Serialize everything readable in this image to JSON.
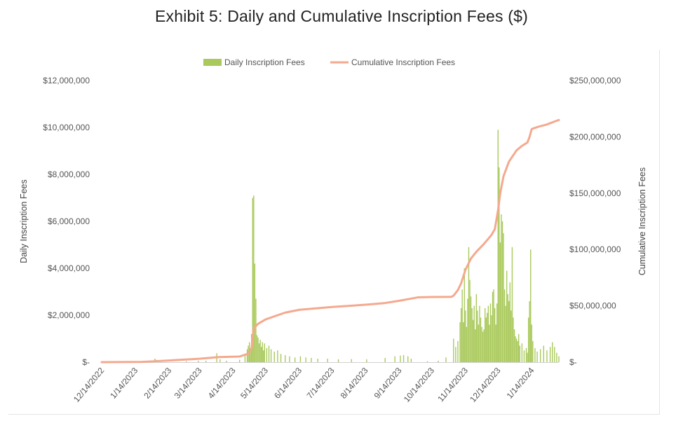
{
  "title": "Exhibit 5: Daily and Cumulative Inscription Fees ($)",
  "chart_data": {
    "type": "bar+line",
    "ylabel_left": "Daily Inscription Fees",
    "ylabel_right": "Cumulative Inscription Fees",
    "legend": {
      "placement": "top-center",
      "bar_label": "Daily Inscription Fees",
      "line_label": "Cumulative Inscription Fees"
    },
    "colors": {
      "bar": "#a9c95b",
      "line": "#f4a98e",
      "axis": "#d0d0d0"
    },
    "y_left": {
      "range": [
        0,
        12000000
      ],
      "ticks": [
        0,
        2000000,
        4000000,
        6000000,
        8000000,
        10000000,
        12000000
      ],
      "tick_labels": [
        "$-",
        "$2,000,000",
        "$4,000,000",
        "$6,000,000",
        "$8,000,000",
        "$10,000,000",
        "$12,000,000"
      ]
    },
    "y_right": {
      "range": [
        0,
        250000000
      ],
      "ticks": [
        0,
        50000000,
        100000000,
        150000000,
        200000000,
        250000000
      ],
      "tick_labels": [
        "$-",
        "$50,000,000",
        "$100,000,000",
        "$150,000,000",
        "$200,000,000",
        "$250,000,000"
      ]
    },
    "x_axis": {
      "start": "2022-12-14",
      "end": "2024-02-08",
      "tick_labels": [
        "12/14/2022",
        "1/14/2023",
        "2/14/2023",
        "3/14/2023",
        "4/14/2023",
        "5/14/2023",
        "6/14/2023",
        "7/14/2023",
        "8/14/2023",
        "9/14/2023",
        "10/14/2023",
        "11/14/2023",
        "12/14/2023",
        "1/14/2024"
      ],
      "tick_dates": [
        "2022-12-14",
        "2023-01-14",
        "2023-02-14",
        "2023-03-14",
        "2023-04-14",
        "2023-05-14",
        "2023-06-14",
        "2023-07-14",
        "2023-08-14",
        "2023-09-14",
        "2023-10-14",
        "2023-11-14",
        "2023-12-14",
        "2024-01-14"
      ]
    },
    "daily_series": {
      "name": "Daily Inscription Fees",
      "points": [
        [
          "2023-02-01",
          150000
        ],
        [
          "2023-02-02",
          100000
        ],
        [
          "2023-03-02",
          40000
        ],
        [
          "2023-03-13",
          60000
        ],
        [
          "2023-03-20",
          60000
        ],
        [
          "2023-03-30",
          380000
        ],
        [
          "2023-04-02",
          120000
        ],
        [
          "2023-04-08",
          60000
        ],
        [
          "2023-04-20",
          100000
        ],
        [
          "2023-04-25",
          300000
        ],
        [
          "2023-04-27",
          550000
        ],
        [
          "2023-04-28",
          700000
        ],
        [
          "2023-04-29",
          850000
        ],
        [
          "2023-04-30",
          600000
        ],
        [
          "2023-05-01",
          1200000
        ],
        [
          "2023-05-02",
          7000000
        ],
        [
          "2023-05-03",
          7100000
        ],
        [
          "2023-05-04",
          4200000
        ],
        [
          "2023-05-05",
          2700000
        ],
        [
          "2023-05-06",
          1150000
        ],
        [
          "2023-05-07",
          1050000
        ],
        [
          "2023-05-08",
          800000
        ],
        [
          "2023-05-09",
          950000
        ],
        [
          "2023-05-10",
          650000
        ],
        [
          "2023-05-11",
          850000
        ],
        [
          "2023-05-12",
          500000
        ],
        [
          "2023-05-13",
          800000
        ],
        [
          "2023-05-15",
          600000
        ],
        [
          "2023-05-17",
          700000
        ],
        [
          "2023-05-19",
          550000
        ],
        [
          "2023-05-22",
          450000
        ],
        [
          "2023-05-25",
          500000
        ],
        [
          "2023-05-28",
          350000
        ],
        [
          "2023-06-01",
          300000
        ],
        [
          "2023-06-05",
          250000
        ],
        [
          "2023-06-10",
          200000
        ],
        [
          "2023-06-15",
          250000
        ],
        [
          "2023-06-20",
          200000
        ],
        [
          "2023-06-25",
          180000
        ],
        [
          "2023-07-01",
          150000
        ],
        [
          "2023-07-10",
          150000
        ],
        [
          "2023-07-20",
          120000
        ],
        [
          "2023-08-01",
          130000
        ],
        [
          "2023-08-15",
          120000
        ],
        [
          "2023-09-01",
          180000
        ],
        [
          "2023-09-10",
          250000
        ],
        [
          "2023-09-15",
          280000
        ],
        [
          "2023-09-18",
          300000
        ],
        [
          "2023-09-22",
          250000
        ],
        [
          "2023-09-25",
          150000
        ],
        [
          "2023-10-10",
          40000
        ],
        [
          "2023-10-20",
          60000
        ],
        [
          "2023-10-27",
          200000
        ],
        [
          "2023-11-03",
          1000000
        ],
        [
          "2023-11-05",
          650000
        ],
        [
          "2023-11-07",
          900000
        ],
        [
          "2023-11-09",
          1700000
        ],
        [
          "2023-11-10",
          2300000
        ],
        [
          "2023-11-11",
          3100000
        ],
        [
          "2023-11-12",
          1700000
        ],
        [
          "2023-11-13",
          4000000
        ],
        [
          "2023-11-14",
          2200000
        ],
        [
          "2023-11-15",
          1500000
        ],
        [
          "2023-11-16",
          2700000
        ],
        [
          "2023-11-17",
          4900000
        ],
        [
          "2023-11-18",
          3500000
        ],
        [
          "2023-11-19",
          2800000
        ],
        [
          "2023-11-20",
          2300000
        ],
        [
          "2023-11-21",
          1800000
        ],
        [
          "2023-11-22",
          2400000
        ],
        [
          "2023-11-23",
          1400000
        ],
        [
          "2023-11-24",
          2900000
        ],
        [
          "2023-11-25",
          2200000
        ],
        [
          "2023-11-26",
          1600000
        ],
        [
          "2023-11-27",
          2400000
        ],
        [
          "2023-11-28",
          1900000
        ],
        [
          "2023-11-29",
          1500000
        ],
        [
          "2023-11-30",
          1300000
        ],
        [
          "2023-12-01",
          1400000
        ],
        [
          "2023-12-02",
          2300000
        ],
        [
          "2023-12-03",
          1900000
        ],
        [
          "2023-12-04",
          2100000
        ],
        [
          "2023-12-05",
          2400000
        ],
        [
          "2023-12-06",
          1600000
        ],
        [
          "2023-12-07",
          2500000
        ],
        [
          "2023-12-08",
          2000000
        ],
        [
          "2023-12-09",
          3000000
        ],
        [
          "2023-12-10",
          3100000
        ],
        [
          "2023-12-11",
          2300000
        ],
        [
          "2023-12-12",
          1600000
        ],
        [
          "2023-12-13",
          2500000
        ],
        [
          "2023-12-14",
          9900000
        ],
        [
          "2023-12-15",
          8300000
        ],
        [
          "2023-12-16",
          5100000
        ],
        [
          "2023-12-17",
          6300000
        ],
        [
          "2023-12-18",
          6000000
        ],
        [
          "2023-12-19",
          5500000
        ],
        [
          "2023-12-20",
          3100000
        ],
        [
          "2023-12-21",
          2400000
        ],
        [
          "2023-12-22",
          3900000
        ],
        [
          "2023-12-23",
          2900000
        ],
        [
          "2023-12-24",
          2600000
        ],
        [
          "2023-12-25",
          3400000
        ],
        [
          "2023-12-26",
          2200000
        ],
        [
          "2023-12-27",
          4900000
        ],
        [
          "2023-12-28",
          1900000
        ],
        [
          "2023-12-29",
          1400000
        ],
        [
          "2023-12-30",
          1100000
        ],
        [
          "2023-12-31",
          1000000
        ],
        [
          "2024-01-01",
          900000
        ],
        [
          "2024-01-02",
          1200000
        ],
        [
          "2024-01-03",
          700000
        ],
        [
          "2024-01-05",
          800000
        ],
        [
          "2024-01-07",
          500000
        ],
        [
          "2024-01-09",
          600000
        ],
        [
          "2024-01-10",
          400000
        ],
        [
          "2024-01-11",
          1900000
        ],
        [
          "2024-01-12",
          2600000
        ],
        [
          "2024-01-13",
          4800000
        ],
        [
          "2024-01-14",
          1600000
        ],
        [
          "2024-01-15",
          900000
        ],
        [
          "2024-01-17",
          600000
        ],
        [
          "2024-01-19",
          450000
        ],
        [
          "2024-01-22",
          550000
        ],
        [
          "2024-01-25",
          700000
        ],
        [
          "2024-01-28",
          500000
        ],
        [
          "2024-01-31",
          650000
        ],
        [
          "2024-02-02",
          850000
        ],
        [
          "2024-02-04",
          650000
        ],
        [
          "2024-02-06",
          400000
        ],
        [
          "2024-02-08",
          250000
        ]
      ]
    },
    "cumulative_series": {
      "name": "Cumulative Inscription Fees",
      "points": [
        [
          "2022-12-14",
          0
        ],
        [
          "2023-01-20",
          200000
        ],
        [
          "2023-02-01",
          800000
        ],
        [
          "2023-02-14",
          1500000
        ],
        [
          "2023-03-14",
          3000000
        ],
        [
          "2023-04-01",
          4500000
        ],
        [
          "2023-04-20",
          5000000
        ],
        [
          "2023-04-28",
          7500000
        ],
        [
          "2023-05-01",
          12000000
        ],
        [
          "2023-05-02",
          22000000
        ],
        [
          "2023-05-03",
          30000000
        ],
        [
          "2023-05-07",
          34000000
        ],
        [
          "2023-05-14",
          38000000
        ],
        [
          "2023-06-01",
          44000000
        ],
        [
          "2023-06-14",
          46500000
        ],
        [
          "2023-07-14",
          49000000
        ],
        [
          "2023-08-14",
          51000000
        ],
        [
          "2023-09-01",
          52500000
        ],
        [
          "2023-09-14",
          54500000
        ],
        [
          "2023-10-01",
          57500000
        ],
        [
          "2023-10-14",
          57800000
        ],
        [
          "2023-11-01",
          58000000
        ],
        [
          "2023-11-03",
          59000000
        ],
        [
          "2023-11-07",
          64000000
        ],
        [
          "2023-11-10",
          70000000
        ],
        [
          "2023-11-14",
          82000000
        ],
        [
          "2023-11-19",
          92000000
        ],
        [
          "2023-11-24",
          98000000
        ],
        [
          "2023-12-01",
          105000000
        ],
        [
          "2023-12-08",
          113000000
        ],
        [
          "2023-12-11",
          118000000
        ],
        [
          "2023-12-14",
          135000000
        ],
        [
          "2023-12-16",
          150000000
        ],
        [
          "2023-12-19",
          165000000
        ],
        [
          "2023-12-24",
          178000000
        ],
        [
          "2023-12-31",
          188000000
        ],
        [
          "2024-01-05",
          192000000
        ],
        [
          "2024-01-10",
          195000000
        ],
        [
          "2024-01-12",
          200000000
        ],
        [
          "2024-01-14",
          207000000
        ],
        [
          "2024-01-20",
          209000000
        ],
        [
          "2024-01-28",
          211000000
        ],
        [
          "2024-02-05",
          214000000
        ],
        [
          "2024-02-08",
          215000000
        ]
      ]
    }
  }
}
